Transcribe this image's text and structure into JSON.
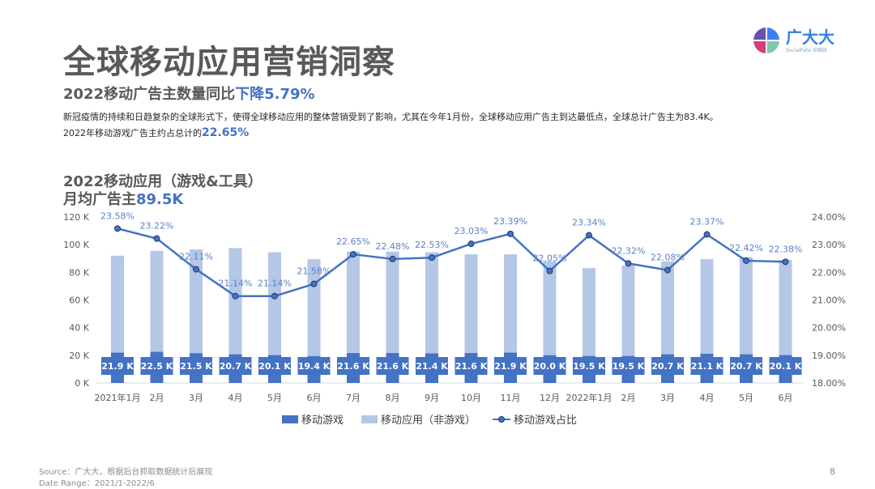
{
  "title": "全球移动应用营销洞察",
  "logo": {
    "name_cn": "广大大",
    "name_en": "SocialPeta 中国站"
  },
  "subtitle": {
    "prefix": "2022移动广告主数量同比",
    "highlight": "下降5.79%"
  },
  "description": {
    "line1": "新冠疫情的持续和日趋复杂的全球形式下，使得全球移动应用的整体营销受到了影响，尤其在今年1月份，全球移动应用广告主到达最低点，全球总计广告主为83.4K。",
    "line2_prefix": "2022年移动游戏广告主约占总计的",
    "line2_highlight": "22.65%"
  },
  "chart_heading": {
    "line1": "2022移动应用（游戏&工具）",
    "line2_prefix": "月均广告主",
    "line2_highlight": "89.5K"
  },
  "chart_data": {
    "type": "bar",
    "categories": [
      "2021年1月",
      "2月",
      "3月",
      "4月",
      "5月",
      "6月",
      "7月",
      "8月",
      "9月",
      "10月",
      "11月",
      "12月",
      "2022年1月",
      "2月",
      "3月",
      "4月",
      "5月",
      "6月"
    ],
    "series": [
      {
        "name": "移动游戏",
        "type": "bar",
        "axis": "left",
        "color": "#4472c4",
        "values": [
          21.9,
          22.5,
          21.5,
          20.7,
          20.1,
          19.4,
          21.6,
          21.6,
          21.4,
          21.6,
          21.9,
          20.0,
          19.5,
          19.5,
          20.7,
          21.1,
          20.7,
          20.1
        ],
        "labels": [
          "21.9 K",
          "22.5 K",
          "21.5 K",
          "20.7 K",
          "20.1 K",
          "19.4 K",
          "21.6 K",
          "21.6 K",
          "21.4 K",
          "21.6 K",
          "21.9 K",
          "20.0 K",
          "19.5 K",
          "19.5 K",
          "20.7 K",
          "21.1 K",
          "20.7 K",
          "20.1 K"
        ]
      },
      {
        "name": "移动应用（非游戏）",
        "type": "bar",
        "axis": "left",
        "color": "#b4c7e7",
        "values": [
          92,
          95.5,
          96.5,
          97.5,
          94.5,
          89.5,
          95,
          95,
          94.5,
          93,
          93,
          88,
          83,
          85,
          88,
          89.5,
          91,
          89
        ]
      },
      {
        "name": "移动游戏占比",
        "type": "line",
        "axis": "right",
        "color": "#4472c4",
        "values": [
          23.58,
          23.22,
          22.11,
          21.14,
          21.14,
          21.58,
          22.65,
          22.48,
          22.53,
          23.03,
          23.39,
          22.05,
          23.34,
          22.32,
          22.08,
          23.37,
          22.42,
          22.38
        ],
        "labels": [
          "23.58%",
          "23.22%",
          "22.11%",
          "21.14%",
          "21.14%",
          "21.58%",
          "22.65%",
          "22.48%",
          "22.53%",
          "23.03%",
          "23.39%",
          "22.05%",
          "23.34%",
          "22.32%",
          "22.08%",
          "23.37%",
          "22.42%",
          "22.38%"
        ]
      }
    ],
    "y_left": {
      "range": [
        0,
        120
      ],
      "ticks": [
        "0 K",
        "20 K",
        "40 K",
        "60 K",
        "80 K",
        "100 K",
        "120 K"
      ]
    },
    "y_right": {
      "range": [
        18,
        24
      ],
      "ticks": [
        "18.00%",
        "19.00%",
        "20.00%",
        "21.00%",
        "22.00%",
        "23.00%",
        "24.00%"
      ]
    },
    "grid": false,
    "legend": "bottom"
  },
  "footer": {
    "source": "Source：广大大，根据后台抓取数据统计后展现",
    "date_range": "Date Range：2021/1-2022/6",
    "page": "8"
  }
}
